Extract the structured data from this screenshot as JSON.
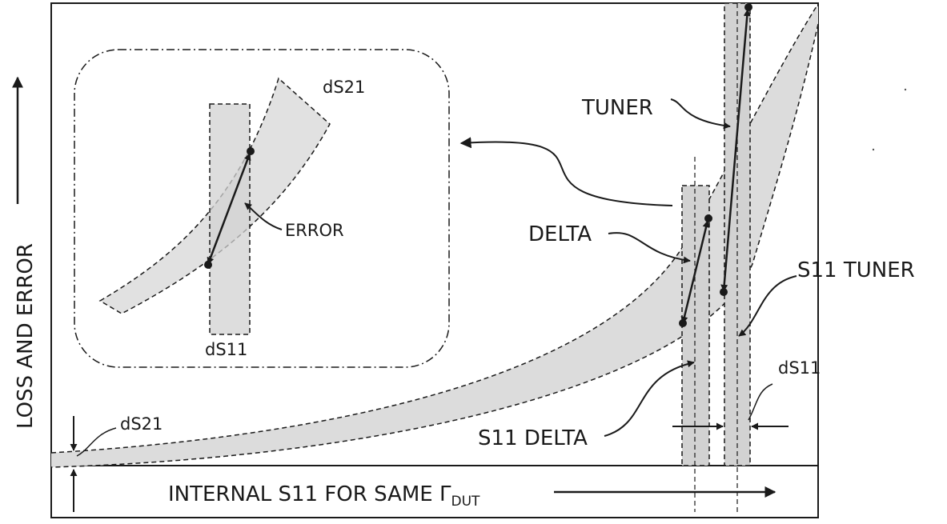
{
  "labels": {
    "y_axis": "LOSS AND ERROR",
    "x_axis_prefix": "INTERNAL S11 FOR SAME ",
    "x_axis_gamma": "Γ",
    "x_axis_sub": "DUT",
    "tuner": "TUNER",
    "delta": "DELTA",
    "s11_tuner": "S11 TUNER",
    "s11_delta": "S11 DELTA",
    "ds11_right": "dS11",
    "ds21_bottom": "dS21",
    "inset_ds21": "dS21",
    "inset_error": "ERROR",
    "inset_ds11": "dS11"
  },
  "colors": {
    "band_fill": "#dcdcdc",
    "rect_fill": "#d2d2d2",
    "stroke": "#1a1a1a"
  }
}
